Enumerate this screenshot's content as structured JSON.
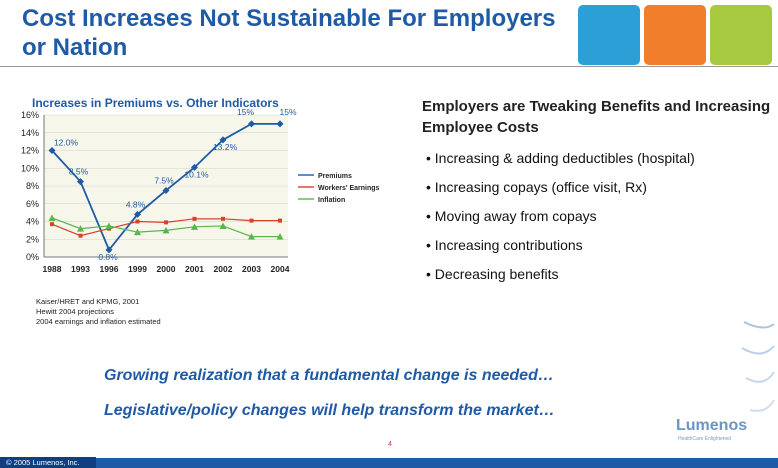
{
  "slide": {
    "title": "Cost Increases Not Sustainable For Employers or Nation",
    "tile_colors": [
      "#2b9fd6",
      "#f07e2a",
      "#a6c940"
    ]
  },
  "chart_data": {
    "type": "line",
    "title": "Increases in Premiums vs. Other Indicators",
    "categories": [
      "1988",
      "1993",
      "1996",
      "1999",
      "2000",
      "2001",
      "2002",
      "2003",
      "2004"
    ],
    "ylim": [
      0,
      16
    ],
    "yticks": [
      0,
      2,
      4,
      6,
      8,
      10,
      12,
      14,
      16
    ],
    "ytick_labels": [
      "0%",
      "2%",
      "4%",
      "6%",
      "8%",
      "10%",
      "12%",
      "14%",
      "16%"
    ],
    "grid": true,
    "legend_position": "right",
    "series": [
      {
        "name": "Premiums",
        "color": "#1f5aa6",
        "marker": "diamond",
        "values": [
          12.0,
          8.5,
          0.8,
          4.8,
          7.5,
          10.1,
          13.2,
          15,
          15
        ],
        "labels": [
          "12.0%",
          "8.5%",
          "0.8%",
          "4.8%",
          "7.5%",
          "10.1%",
          "13.2%",
          "15%",
          "15%"
        ]
      },
      {
        "name": "Workers' Earnings",
        "color": "#d9412a",
        "marker": "square",
        "values": [
          3.7,
          2.4,
          3.2,
          4.0,
          3.9,
          4.3,
          4.3,
          4.1,
          4.1
        ]
      },
      {
        "name": "Inflation",
        "color": "#56b84a",
        "marker": "triangle",
        "values": [
          4.4,
          3.2,
          3.5,
          2.8,
          3.0,
          3.4,
          3.5,
          2.3,
          2.3
        ]
      }
    ]
  },
  "panel": {
    "heading": "Employers are Tweaking Benefits and Increasing Employee Costs",
    "bullets": [
      "• Increasing & adding deductibles (hospital)",
      "• Increasing copays (office visit, Rx)",
      "• Moving away from copays",
      "• Increasing contributions",
      "• Decreasing benefits"
    ]
  },
  "sources": [
    "Kaiser/HRET and KPMG, 2001",
    "Hewitt 2004 projections",
    "2004 earnings and inflation estimated"
  ],
  "callouts": {
    "line1": "Growing realization that a fundamental change is needed…",
    "line2": "Legislative/policy changes will help transform the market…"
  },
  "footer": {
    "page_number": "4",
    "copyright": "© 2005 Lumenos, Inc.",
    "logo": "Lumenos",
    "logo_tagline": "HealthCare Enlightened"
  }
}
